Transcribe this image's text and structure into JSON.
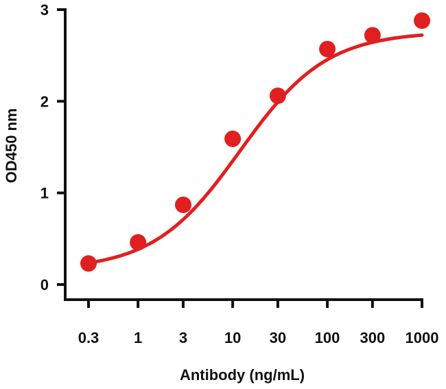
{
  "chart_data": {
    "type": "scatter",
    "title": "",
    "xlabel": "Antibody (ng/mL)",
    "ylabel": "OD450 nm",
    "x_scale": "log",
    "x_ticks": [
      0.3,
      1,
      3,
      10,
      30,
      100,
      300,
      1000
    ],
    "x_tick_labels": [
      "0.3",
      "1",
      "3",
      "10",
      "30",
      "100",
      "300",
      "1000"
    ],
    "y_ticks": [
      0,
      1,
      2,
      3
    ],
    "y_tick_labels": [
      "0",
      "1",
      "2",
      "3"
    ],
    "ylim": [
      0,
      3
    ],
    "grid": false,
    "legend": "none",
    "color": "#e02020",
    "series": [
      {
        "x": [
          0.3,
          1,
          3,
          10,
          30,
          100,
          300,
          1000
        ],
        "y": [
          0.23,
          0.46,
          0.87,
          1.59,
          2.06,
          2.57,
          2.72,
          2.88
        ],
        "fit": "sigmoidal curve"
      }
    ]
  }
}
